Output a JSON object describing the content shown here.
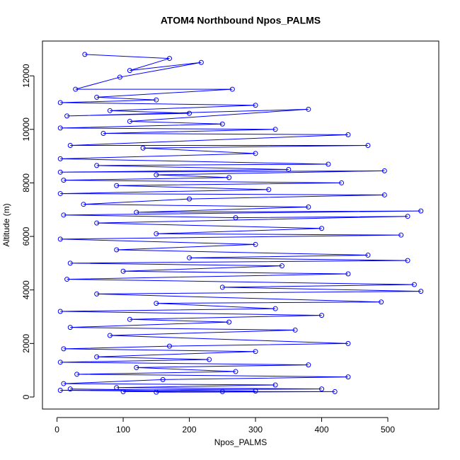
{
  "chart_data": {
    "type": "line",
    "title": "ATOM4 Northbound Npos_PALMS",
    "x_label": "Npos_PALMS",
    "y_label": "Altitude (m)",
    "color": "#0000ff",
    "x": [
      42,
      170,
      110,
      218,
      95,
      28,
      265,
      60,
      150,
      5,
      300,
      80,
      200,
      15,
      380,
      110,
      250,
      5,
      330,
      70,
      440,
      20,
      470,
      130,
      300,
      5,
      410,
      60,
      350,
      5,
      495,
      150,
      260,
      10,
      430,
      90,
      320,
      5,
      495,
      200,
      40,
      380,
      120,
      550,
      10,
      270,
      530,
      60,
      400,
      150,
      520,
      5,
      300,
      90,
      470,
      200,
      530,
      20,
      340,
      100,
      440,
      15,
      540,
      250,
      550,
      60,
      490,
      150,
      330,
      5,
      400,
      110,
      260,
      20,
      360,
      80,
      440,
      170,
      10,
      300,
      60,
      230,
      5,
      380,
      120,
      270,
      30,
      440,
      160,
      10,
      330,
      90,
      400,
      5,
      250,
      100,
      420,
      150,
      300,
      20
    ],
    "values": [
      12800,
      12650,
      12200,
      12500,
      11950,
      11500,
      11500,
      11200,
      11100,
      11000,
      10900,
      10700,
      10600,
      10500,
      10750,
      10300,
      10200,
      10050,
      10000,
      9850,
      9800,
      9400,
      9400,
      9300,
      9100,
      8900,
      8700,
      8650,
      8500,
      8400,
      8450,
      8300,
      8200,
      8100,
      8000,
      7900,
      7750,
      7600,
      7550,
      7400,
      7200,
      7100,
      6900,
      6950,
      6800,
      6700,
      6750,
      6500,
      6300,
      6100,
      6050,
      5900,
      5700,
      5500,
      5300,
      5200,
      5100,
      5000,
      4900,
      4700,
      4600,
      4400,
      4200,
      4100,
      3950,
      3850,
      3550,
      3500,
      3300,
      3200,
      3050,
      2900,
      2800,
      2600,
      2500,
      2300,
      2000,
      1900,
      1800,
      1700,
      1500,
      1400,
      1300,
      1200,
      1100,
      950,
      850,
      750,
      650,
      500,
      450,
      350,
      300,
      250,
      200,
      200,
      200,
      180,
      220,
      300
    ],
    "xlim": [
      -22,
      577
    ],
    "ylim": [
      -450,
      13300
    ],
    "xticks": [
      0,
      100,
      200,
      300,
      400,
      500
    ],
    "yticks": [
      0,
      2000,
      4000,
      6000,
      8000,
      10000,
      12000
    ]
  }
}
